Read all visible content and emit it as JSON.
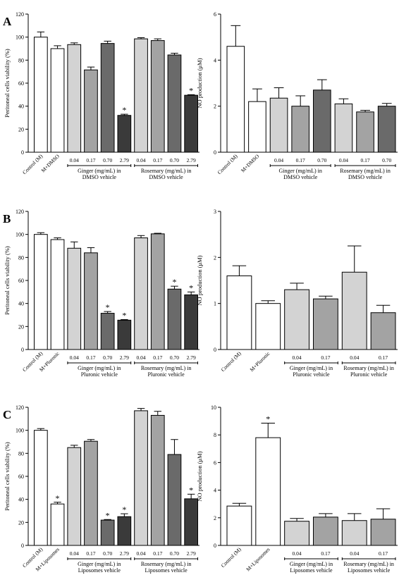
{
  "panels": [
    {
      "letter": "A",
      "charts": [
        {
          "type": "bar",
          "ylabel": "Peritoneal cells viability (%)",
          "ylim": [
            0,
            120
          ],
          "yticks": [
            0,
            20,
            40,
            60,
            80,
            100,
            120
          ],
          "bars": [
            {
              "category": "Control (M)",
              "value": 100,
              "err": 4.5,
              "fill": "#ffffff",
              "sig": false
            },
            {
              "category": "M+DMSO",
              "value": 90,
              "err": 2.5,
              "fill": "#ffffff",
              "sig": false
            },
            {
              "category": "0.04",
              "value": 93.5,
              "err": 1.5,
              "fill": "#d3d3d3",
              "sig": false
            },
            {
              "category": "0.17",
              "value": 71.5,
              "err": 2.5,
              "fill": "#a3a3a3",
              "sig": false
            },
            {
              "category": "0.70",
              "value": 94.5,
              "err": 2,
              "fill": "#6a6a6a",
              "sig": false
            },
            {
              "category": "2.79",
              "value": 32,
              "err": 1,
              "fill": "#3a3a3a",
              "sig": true
            },
            {
              "category": "0.04",
              "value": 98.5,
              "err": 1,
              "fill": "#d3d3d3",
              "sig": false
            },
            {
              "category": "0.17",
              "value": 97,
              "err": 1.5,
              "fill": "#a3a3a3",
              "sig": false
            },
            {
              "category": "0.70",
              "value": 84.5,
              "err": 1.5,
              "fill": "#6a6a6a",
              "sig": false
            },
            {
              "category": "2.79",
              "value": 49.5,
              "err": 0.5,
              "fill": "#3a3a3a",
              "sig": true
            }
          ],
          "groups": [
            {
              "line1": "Ginger (mg/mL) in",
              "line2": "DMSO vehicle",
              "from": 2,
              "to": 5
            },
            {
              "line1": "Rosemary (mg/mL) in",
              "line2": "DMSO vehicle",
              "from": 6,
              "to": 9
            }
          ]
        },
        {
          "type": "bar",
          "ylabel": "NO production (μM)",
          "ylim": [
            0,
            6
          ],
          "yticks": [
            0,
            2,
            4,
            6
          ],
          "bars": [
            {
              "category": "Control (M)",
              "value": 4.6,
              "err": 0.9,
              "fill": "#ffffff",
              "sig": false
            },
            {
              "category": "M+DMSO",
              "value": 2.2,
              "err": 0.55,
              "fill": "#ffffff",
              "sig": false
            },
            {
              "category": "0.04",
              "value": 2.35,
              "err": 0.45,
              "fill": "#d3d3d3",
              "sig": false
            },
            {
              "category": "0.17",
              "value": 2.0,
              "err": 0.45,
              "fill": "#a3a3a3",
              "sig": false
            },
            {
              "category": "0.70",
              "value": 2.7,
              "err": 0.45,
              "fill": "#6a6a6a",
              "sig": false
            },
            {
              "category": "0.04",
              "value": 2.1,
              "err": 0.22,
              "fill": "#d3d3d3",
              "sig": false
            },
            {
              "category": "0.17",
              "value": 1.75,
              "err": 0.07,
              "fill": "#a3a3a3",
              "sig": false
            },
            {
              "category": "0.70",
              "value": 2.0,
              "err": 0.12,
              "fill": "#6a6a6a",
              "sig": false
            }
          ],
          "groups": [
            {
              "line1": "Ginger (mg/mL) in",
              "line2": "DMSO vehicle",
              "from": 2,
              "to": 4
            },
            {
              "line1": "Rosemary (mg/mL) in",
              "line2": "DMSO vehicle",
              "from": 5,
              "to": 7
            }
          ]
        }
      ]
    },
    {
      "letter": "B",
      "charts": [
        {
          "type": "bar",
          "ylabel": "Peritoneal cells viability (%)",
          "ylim": [
            0,
            120
          ],
          "yticks": [
            0,
            20,
            40,
            60,
            80,
            100,
            120
          ],
          "bars": [
            {
              "category": "Control (M)",
              "value": 100,
              "err": 1.5,
              "fill": "#ffffff",
              "sig": false
            },
            {
              "category": "M+Pluronic",
              "value": 95.5,
              "err": 1.5,
              "fill": "#ffffff",
              "sig": false
            },
            {
              "category": "0.04",
              "value": 88,
              "err": 5.5,
              "fill": "#d3d3d3",
              "sig": false
            },
            {
              "category": "0.17",
              "value": 84,
              "err": 4.5,
              "fill": "#a3a3a3",
              "sig": false
            },
            {
              "category": "0.70",
              "value": 31.5,
              "err": 1.5,
              "fill": "#6a6a6a",
              "sig": true
            },
            {
              "category": "2.79",
              "value": 25.5,
              "err": 0.5,
              "fill": "#3a3a3a",
              "sig": true
            },
            {
              "category": "0.04",
              "value": 97,
              "err": 2,
              "fill": "#d3d3d3",
              "sig": false
            },
            {
              "category": "0.17",
              "value": 100.5,
              "err": 0.5,
              "fill": "#a3a3a3",
              "sig": false
            },
            {
              "category": "0.70",
              "value": 52.5,
              "err": 2.5,
              "fill": "#6a6a6a",
              "sig": true
            },
            {
              "category": "2.79",
              "value": 47.5,
              "err": 2.5,
              "fill": "#3a3a3a",
              "sig": true
            }
          ],
          "groups": [
            {
              "line1": "Ginger (mg/mL) in",
              "line2": "Pluronic vehicle",
              "from": 2,
              "to": 5
            },
            {
              "line1": "Rosemary (mg/mL) in",
              "line2": "Pluronic vehicle",
              "from": 6,
              "to": 9
            }
          ]
        },
        {
          "type": "bar",
          "ylabel": "NO production (μM)",
          "ylim": [
            0,
            3
          ],
          "yticks": [
            0,
            1,
            2,
            3
          ],
          "bars": [
            {
              "category": "Control (M)",
              "value": 1.6,
              "err": 0.22,
              "fill": "#ffffff",
              "sig": false
            },
            {
              "category": "M+Pluronic",
              "value": 1.0,
              "err": 0.06,
              "fill": "#ffffff",
              "sig": false
            },
            {
              "category": "0.04",
              "value": 1.3,
              "err": 0.14,
              "fill": "#d3d3d3",
              "sig": false
            },
            {
              "category": "0.17",
              "value": 1.1,
              "err": 0.06,
              "fill": "#a3a3a3",
              "sig": false
            },
            {
              "category": "0.04",
              "value": 1.68,
              "err": 0.57,
              "fill": "#d3d3d3",
              "sig": false
            },
            {
              "category": "0.17",
              "value": 0.8,
              "err": 0.16,
              "fill": "#a3a3a3",
              "sig": false
            }
          ],
          "groups": [
            {
              "line1": "Ginger (mg/mL) in",
              "line2": "Pluronic vehicle",
              "from": 2,
              "to": 3
            },
            {
              "line1": "Rosemary (mg/mL) in",
              "line2": "Pluronic vehicle",
              "from": 4,
              "to": 5
            }
          ]
        }
      ]
    },
    {
      "letter": "C",
      "charts": [
        {
          "type": "bar",
          "ylabel": "Peritoneal cells viability (%)",
          "ylim": [
            0,
            120
          ],
          "yticks": [
            0,
            20,
            40,
            60,
            80,
            100,
            120
          ],
          "bars": [
            {
              "category": "Control (M)",
              "value": 100,
              "err": 1.5,
              "fill": "#ffffff",
              "sig": false
            },
            {
              "category": "M+Liposomes",
              "value": 36,
              "err": 1.5,
              "fill": "#ffffff",
              "sig": true
            },
            {
              "category": "0.04",
              "value": 85,
              "err": 2,
              "fill": "#d3d3d3",
              "sig": false
            },
            {
              "category": "0.17",
              "value": 90.5,
              "err": 1.5,
              "fill": "#a3a3a3",
              "sig": false
            },
            {
              "category": "0.70",
              "value": 22,
              "err": 0.5,
              "fill": "#6a6a6a",
              "sig": true
            },
            {
              "category": "2.79",
              "value": 25,
              "err": 2.5,
              "fill": "#3a3a3a",
              "sig": true
            },
            {
              "category": "0.04",
              "value": 117,
              "err": 2,
              "fill": "#d3d3d3",
              "sig": false
            },
            {
              "category": "0.17",
              "value": 113,
              "err": 3.5,
              "fill": "#a3a3a3",
              "sig": false
            },
            {
              "category": "0.70",
              "value": 79,
              "err": 13,
              "fill": "#6a6a6a",
              "sig": false
            },
            {
              "category": "2.79",
              "value": 40.5,
              "err": 4,
              "fill": "#3a3a3a",
              "sig": true
            }
          ],
          "groups": [
            {
              "line1": "Ginger (mg/mL) in",
              "line2": "Liposomes vehicle",
              "from": 2,
              "to": 5
            },
            {
              "line1": "Rosemary (mg/mL) in",
              "line2": "Liposomes vehicle",
              "from": 6,
              "to": 9
            }
          ]
        },
        {
          "type": "bar",
          "ylabel": "NO production (μM)",
          "ylim": [
            0,
            10
          ],
          "yticks": [
            0,
            2,
            4,
            6,
            8,
            10
          ],
          "bars": [
            {
              "category": "Control (M)",
              "value": 2.85,
              "err": 0.2,
              "fill": "#ffffff",
              "sig": false
            },
            {
              "category": "M+Liposomes",
              "value": 7.8,
              "err": 1.05,
              "fill": "#ffffff",
              "sig": true
            },
            {
              "category": "0.04",
              "value": 1.75,
              "err": 0.2,
              "fill": "#d3d3d3",
              "sig": false
            },
            {
              "category": "0.17",
              "value": 2.05,
              "err": 0.25,
              "fill": "#a3a3a3",
              "sig": false
            },
            {
              "category": "0.04",
              "value": 1.8,
              "err": 0.5,
              "fill": "#d3d3d3",
              "sig": false
            },
            {
              "category": "0.17",
              "value": 1.9,
              "err": 0.75,
              "fill": "#a3a3a3",
              "sig": false
            }
          ],
          "groups": [
            {
              "line1": "Ginger (mg/mL) in",
              "line2": "Liposomes vehicle",
              "from": 2,
              "to": 3
            },
            {
              "line1": "Rosemary (mg/mL) in",
              "line2": "Liposomes vehicle",
              "from": 4,
              "to": 5
            }
          ]
        }
      ]
    }
  ],
  "sig_marker": "*"
}
